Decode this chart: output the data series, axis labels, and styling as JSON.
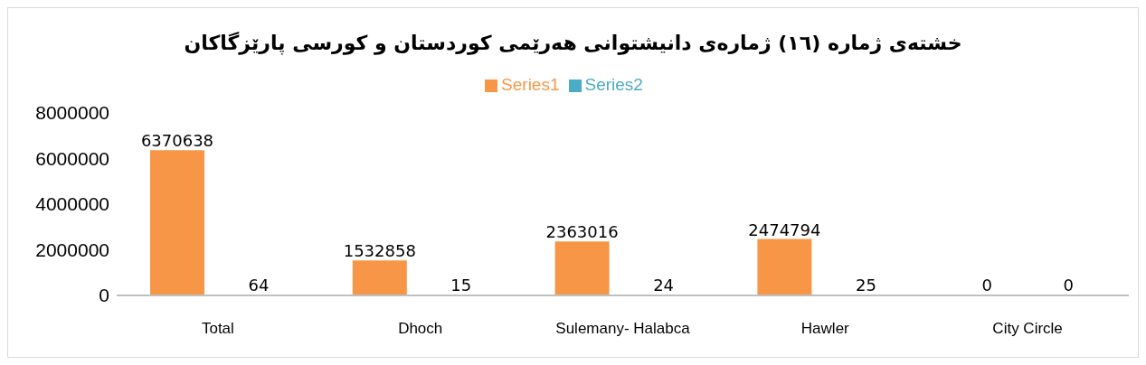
{
  "chart_data": {
    "type": "bar",
    "title": "خشتەی ژمارە (١٦) ژمارەی دانیشتوانی هەرێمی کوردستان و کورسی پارێزگاکان",
    "categories": [
      "Total",
      "Dhoch",
      "Sulemany- Halabca",
      "Hawler",
      "City Circle"
    ],
    "series": [
      {
        "name": "Series1",
        "color": "#f79646",
        "values": [
          6370638,
          1532858,
          2363016,
          2474794,
          0
        ]
      },
      {
        "name": "Series2",
        "color": "#4bacc6",
        "values": [
          64,
          15,
          24,
          25,
          0
        ]
      }
    ],
    "ylim": [
      0,
      8000000
    ],
    "yticks": [
      0,
      2000000,
      4000000,
      6000000,
      8000000
    ],
    "grid": false,
    "legend": "top",
    "data_labels": true
  }
}
